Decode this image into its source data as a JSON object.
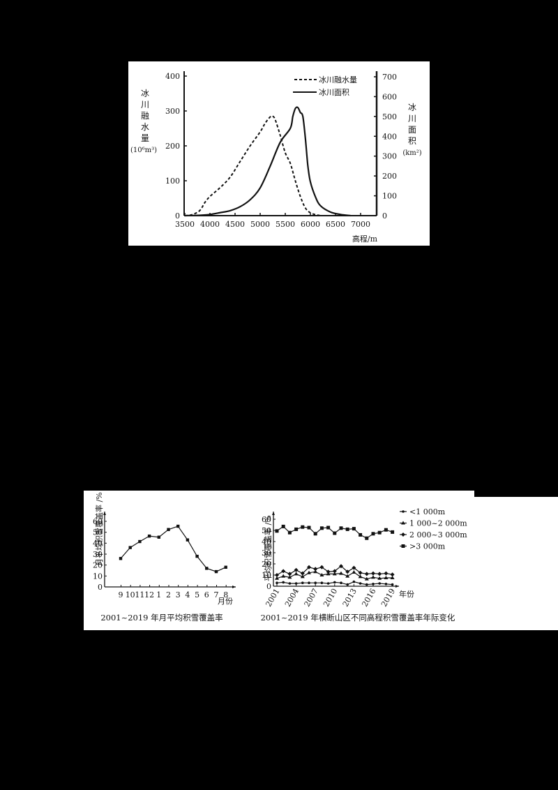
{
  "chart_data": [
    {
      "type": "line",
      "title": "",
      "xlabel": "高程/m",
      "ylabel_left": "冰川融水量 (10⁶m³)",
      "ylabel_left_lines": [
        "冰",
        "川",
        "融",
        "水",
        "量",
        "(10⁶m³)"
      ],
      "ylabel_right": "冰川面积 (km²)",
      "ylabel_right_lines": [
        "冰",
        "川",
        "面",
        "积",
        "(km²)"
      ],
      "xlim": [
        3500,
        7300
      ],
      "ylim_left": [
        0,
        400
      ],
      "ylim_right": [
        0,
        700
      ],
      "x_ticks": [
        "3500",
        "4000",
        "4500",
        "5000",
        "5500",
        "6000",
        "6500",
        "7000"
      ],
      "y_ticks_left": [
        "0",
        "100",
        "200",
        "300",
        "400"
      ],
      "y_ticks_right": [
        "0",
        "100",
        "200",
        "300",
        "400",
        "500",
        "600",
        "700"
      ],
      "legend": [
        "冰川融水量",
        "冰川面积"
      ],
      "legend_position": "upper right",
      "grid": false,
      "series": [
        {
          "name": "冰川融水量",
          "axis": "left",
          "style": "dashed",
          "x": [
            3500,
            3650,
            3800,
            3900,
            4000,
            4200,
            4400,
            4600,
            4800,
            5000,
            5100,
            5200,
            5250,
            5300,
            5400,
            5500,
            5600,
            5700,
            5800,
            5900,
            6000,
            6100,
            6200
          ],
          "values": [
            0,
            3,
            15,
            38,
            55,
            80,
            110,
            155,
            200,
            240,
            265,
            283,
            285,
            275,
            230,
            180,
            150,
            100,
            55,
            22,
            8,
            3,
            0
          ]
        },
        {
          "name": "冰川面积",
          "axis": "right",
          "style": "solid",
          "x": [
            3500,
            3800,
            4000,
            4200,
            4400,
            4600,
            4800,
            5000,
            5200,
            5400,
            5600,
            5650,
            5700,
            5750,
            5800,
            5850,
            5900,
            5950,
            6000,
            6100,
            6200,
            6400,
            6600,
            6800
          ],
          "values": [
            0,
            2,
            6,
            15,
            25,
            45,
            80,
            140,
            250,
            370,
            440,
            500,
            540,
            545,
            520,
            500,
            390,
            250,
            170,
            95,
            50,
            18,
            6,
            0
          ]
        }
      ]
    },
    {
      "type": "line",
      "title": "2001~2019 年月平均积雪覆盖率",
      "xlabel": "月份",
      "ylabel": "月平均积雪覆盖率 /%",
      "ylim": [
        0,
        60
      ],
      "y_ticks": [
        "0",
        "10",
        "20",
        "30",
        "40",
        "50",
        "60"
      ],
      "categories": [
        "9",
        "10",
        "11",
        "12",
        "1",
        "2",
        "3",
        "4",
        "5",
        "6",
        "7",
        "8"
      ],
      "values": [
        26,
        36,
        41.5,
        46.5,
        45.5,
        52.5,
        55.5,
        43,
        28,
        17,
        14,
        18
      ],
      "grid": false
    },
    {
      "type": "line",
      "title": "2001~2019 年横断山区不同高程积雪覆盖率年际变化",
      "xlabel": "年份",
      "ylabel": "平均积雪覆盖率 /%",
      "ylim": [
        0,
        60
      ],
      "y_ticks": [
        "0",
        "10",
        "20",
        "30",
        "40",
        "50",
        "60"
      ],
      "x_tick_labels": [
        "2001",
        "2004",
        "2007",
        "2010",
        "2013",
        "2016",
        "2019"
      ],
      "categories": [
        "2001",
        "2002",
        "2003",
        "2004",
        "2005",
        "2006",
        "2007",
        "2008",
        "2009",
        "2010",
        "2011",
        "2012",
        "2013",
        "2014",
        "2015",
        "2016",
        "2017",
        "2018",
        "2019"
      ],
      "legend": [
        "<1 000m",
        "1 000~2 000m",
        "2 000~3 000m",
        ">3 000m"
      ],
      "legend_position": "upper right",
      "grid": false,
      "series": [
        {
          "name": "<1 000m",
          "values": [
            3,
            3.5,
            2.5,
            2.5,
            3,
            3,
            3,
            3,
            2.5,
            3.5,
            3,
            1.5,
            4,
            2.5,
            1.5,
            2,
            2.5,
            2,
            1.5
          ]
        },
        {
          "name": "1 000~2 000m",
          "values": [
            7,
            9,
            8,
            11,
            8.5,
            12,
            13,
            10,
            11,
            11,
            11.5,
            9,
            12.5,
            8.5,
            6.5,
            8,
            7,
            7.5,
            7.5
          ]
        },
        {
          "name": "2 000~3 000m",
          "values": [
            10,
            13.5,
            11,
            14.5,
            11.5,
            17,
            15.5,
            17,
            13,
            13.5,
            18,
            13,
            16.5,
            12,
            11,
            11.5,
            11,
            11.5,
            10.5
          ]
        },
        {
          "name": ">3 000m",
          "values": [
            49.5,
            53.5,
            48,
            51,
            53,
            52.5,
            47,
            52,
            52.5,
            47.5,
            52,
            51,
            51.5,
            46,
            43,
            47,
            48,
            50.5,
            48.5
          ]
        }
      ]
    }
  ]
}
